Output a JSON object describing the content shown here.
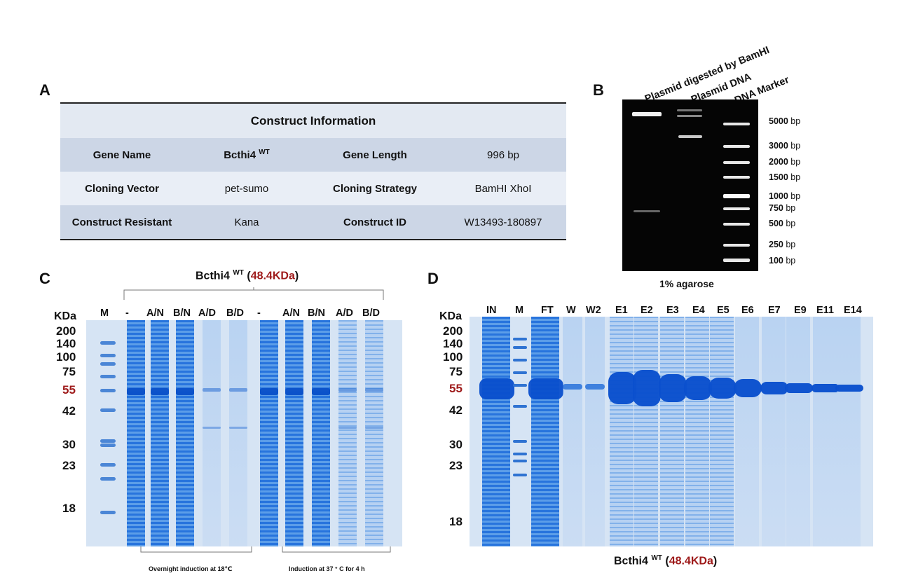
{
  "panels": {
    "A": "A",
    "B": "B",
    "C": "C",
    "D": "D"
  },
  "table": {
    "title": "Construct Information",
    "rows": [
      {
        "k1": "Gene Name",
        "v1": "Bcthi4",
        "v1_sup": "WT",
        "k2": "Gene Length",
        "v2": "996 bp"
      },
      {
        "k1": "Cloning Vector",
        "v1": "pet-sumo",
        "k2": "Cloning Strategy",
        "v2": "BamHI XhoI"
      },
      {
        "k1": "Construct Resistant",
        "v1": "Kana",
        "k2": "Construct ID",
        "v2": "W13493-180897"
      }
    ]
  },
  "agarose": {
    "lanes": [
      "Plasmid digested by BamHI",
      "Plasmid DNA",
      "DNA Marker"
    ],
    "sizes": [
      "5000",
      "3000",
      "2000",
      "1500",
      "1000",
      "750",
      "500",
      "250",
      "100"
    ],
    "unit": "bp",
    "caption": "1% agarose"
  },
  "sds_c": {
    "title_pre": "Bcthi4",
    "title_sup": "WT",
    "title_kda": "48.4KDa",
    "unit": "KDa",
    "markers": [
      "200",
      "140",
      "100",
      "75",
      "55",
      "42",
      "30",
      "23",
      "18"
    ],
    "lanes": [
      "M",
      "-",
      "A/N",
      "B/N",
      "A/D",
      "B/D",
      "-",
      "A/N",
      "B/N",
      "A/D",
      "B/D"
    ],
    "caption_left": "Overnight induction at 18℃",
    "caption_right": "Induction at 37 ° C for 4 h"
  },
  "sds_d": {
    "title_pre": "Bcthi4",
    "title_sup": "WT",
    "title_kda": "48.4KDa",
    "unit": "KDa",
    "markers": [
      "200",
      "140",
      "100",
      "75",
      "55",
      "42",
      "30",
      "23",
      "18"
    ],
    "lanes": [
      "IN",
      "M",
      "FT",
      "W",
      "W2",
      "E1",
      "E2",
      "E3",
      "E4",
      "E5",
      "E6",
      "E7",
      "E9",
      "E11",
      "E14"
    ]
  },
  "colors": {
    "accent_red": "#9e1a1a",
    "coomassie": "#1565d8",
    "gel_bg": "#d6e4f4"
  }
}
